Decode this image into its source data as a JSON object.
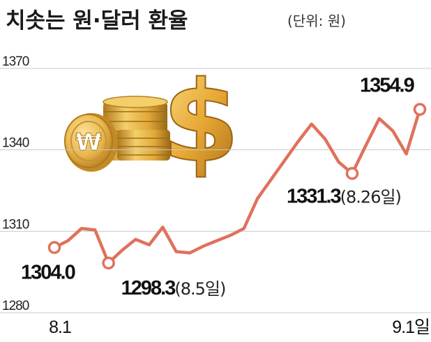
{
  "title": "치솟는 원·달러 환율",
  "unit": "(단위: 원)",
  "colors": {
    "line": "#e0715d",
    "grid": "#c9c9c9",
    "text": "#111111"
  },
  "illustration": {
    "coin_symbol": "₩",
    "dollar_symbol": "$"
  },
  "chart_data": {
    "type": "line",
    "title": "치솟는 원·달러 환율",
    "unit": "(단위: 원)",
    "ylim": [
      1280,
      1370
    ],
    "yticks": [
      "1370",
      "1340",
      "1310",
      "1280"
    ],
    "xticks": [
      "8.1",
      "9.1일"
    ],
    "grid": true,
    "series": [
      {
        "values": [
          1304.0,
          1306.5,
          1311.0,
          1310.5,
          1298.3,
          1303.0,
          1307.0,
          1305.0,
          1311.5,
          1302.5,
          1302.0,
          1304.5,
          1306.5,
          1308.5,
          1311.0,
          1322.0,
          1329.0,
          1336.0,
          1343.0,
          1349.5,
          1344.0,
          1335.5,
          1331.3,
          1341.5,
          1351.5,
          1347.0,
          1338.5,
          1354.9
        ]
      }
    ],
    "annotations": [
      {
        "index": 0,
        "value": "1304.0",
        "note": ""
      },
      {
        "index": 4,
        "value": "1298.3",
        "note": "(8.5일)"
      },
      {
        "index": 22,
        "value": "1331.3",
        "note": "(8.26일)"
      },
      {
        "index": 27,
        "value": "1354.9",
        "note": ""
      }
    ]
  }
}
